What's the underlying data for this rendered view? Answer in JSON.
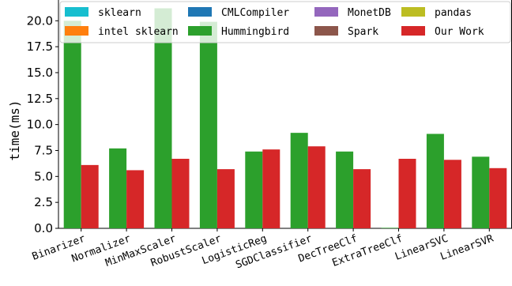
{
  "chart_data": {
    "type": "bar",
    "title": "",
    "xlabel": "",
    "ylabel": "time(ms)",
    "ylim": [
      0,
      22
    ],
    "yticks": [
      "0.0",
      "2.5",
      "5.0",
      "7.5",
      "10.0",
      "12.5",
      "15.0",
      "17.5",
      "20.0"
    ],
    "ytick_values": [
      0,
      2.5,
      5,
      7.5,
      10,
      12.5,
      15,
      17.5,
      20
    ],
    "legend_position": "top",
    "categories": [
      "Binarizer",
      "Normalizer",
      "MinMaxScaler",
      "RobustScaler",
      "LogisticReg",
      "SGDClassifier",
      "DecTreeClf",
      "ExtraTreeClf",
      "LinearSVC",
      "LinearSVR"
    ],
    "series": [
      {
        "name": "sklearn",
        "color": "#17becf",
        "values": [
          null,
          null,
          null,
          null,
          null,
          null,
          null,
          null,
          null,
          null
        ]
      },
      {
        "name": "intel sklearn",
        "color": "#ff7f0e",
        "values": [
          null,
          null,
          null,
          null,
          null,
          null,
          null,
          null,
          null,
          null
        ]
      },
      {
        "name": "CMLCompiler",
        "color": "#1f77b4",
        "values": [
          null,
          null,
          null,
          null,
          null,
          null,
          null,
          null,
          null,
          null
        ]
      },
      {
        "name": "Hummingbird",
        "color": "#2ca02c",
        "values": [
          20.0,
          7.7,
          21.2,
          19.9,
          7.4,
          9.2,
          7.4,
          0.05,
          9.1,
          6.9
        ]
      },
      {
        "name": "MonetDB",
        "color": "#9467bd",
        "values": [
          null,
          null,
          null,
          null,
          null,
          null,
          null,
          null,
          null,
          null
        ]
      },
      {
        "name": "Spark",
        "color": "#8c564b",
        "values": [
          null,
          null,
          null,
          null,
          null,
          null,
          null,
          null,
          null,
          null
        ]
      },
      {
        "name": "pandas",
        "color": "#bcbd22",
        "values": [
          null,
          null,
          null,
          null,
          null,
          null,
          null,
          null,
          null,
          null
        ]
      },
      {
        "name": "Our Work",
        "color": "#d62728",
        "values": [
          6.1,
          5.6,
          6.7,
          5.7,
          7.6,
          7.9,
          5.7,
          6.7,
          6.6,
          5.8
        ]
      }
    ]
  }
}
